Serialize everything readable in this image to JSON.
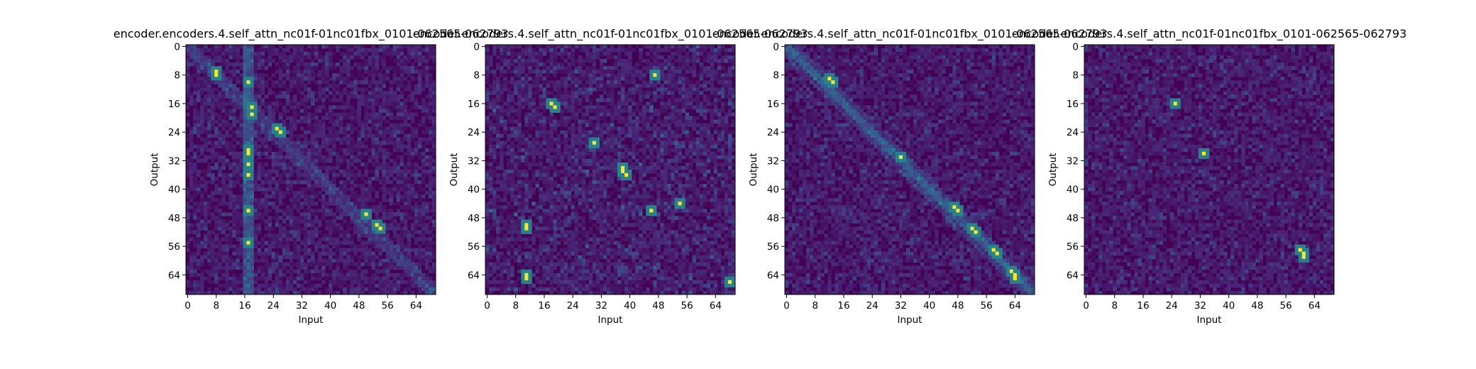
{
  "figure": {
    "background": "#ffffff",
    "colormap": "viridis"
  },
  "chart_data": [
    {
      "type": "heatmap",
      "title": "encoder.encoders.4.self_attn_nc01f-01nc01fbx_0101-062565-062793",
      "xlabel": "Input",
      "ylabel": "Output",
      "x_ticks": [
        "0",
        "8",
        "16",
        "24",
        "32",
        "40",
        "48",
        "56",
        "64"
      ],
      "y_ticks": [
        "0",
        "8",
        "16",
        "24",
        "32",
        "40",
        "48",
        "56",
        "64"
      ],
      "n_inputs": 70,
      "n_outputs": 70,
      "grid": false,
      "peaks": [
        [
          7,
          8
        ],
        [
          8,
          8
        ],
        [
          10,
          17
        ],
        [
          17,
          18
        ],
        [
          19,
          18
        ],
        [
          29,
          17
        ],
        [
          30,
          17
        ],
        [
          33,
          17
        ],
        [
          36,
          17
        ],
        [
          46,
          17
        ],
        [
          55,
          17
        ],
        [
          23,
          25
        ],
        [
          24,
          26
        ],
        [
          47,
          50
        ],
        [
          50,
          53
        ],
        [
          51,
          54
        ]
      ],
      "structure": "diagonal band with strong vertical stripe near input 17"
    },
    {
      "type": "heatmap",
      "title": "encoder.encoders.4.self_attn_nc01f-01nc01fbx_0101-062565-062793",
      "xlabel": "Input",
      "ylabel": "Output",
      "x_ticks": [
        "0",
        "8",
        "16",
        "24",
        "32",
        "40",
        "48",
        "56",
        "64"
      ],
      "y_ticks": [
        "0",
        "8",
        "16",
        "24",
        "32",
        "40",
        "48",
        "56",
        "64"
      ],
      "n_inputs": 70,
      "n_outputs": 70,
      "grid": false,
      "peaks": [
        [
          16,
          18
        ],
        [
          17,
          19
        ],
        [
          27,
          30
        ],
        [
          34,
          38
        ],
        [
          35,
          38
        ],
        [
          36,
          39
        ],
        [
          44,
          54
        ],
        [
          46,
          46
        ],
        [
          50,
          11
        ],
        [
          51,
          11
        ],
        [
          64,
          11
        ],
        [
          65,
          11
        ],
        [
          66,
          68
        ],
        [
          8,
          47
        ]
      ],
      "structure": "scattered sparse attention"
    },
    {
      "type": "heatmap",
      "title": "encoder.encoders.4.self_attn_nc01f-01nc01fbx_0101-062565-062793",
      "xlabel": "Input",
      "ylabel": "Output",
      "x_ticks": [
        "0",
        "8",
        "16",
        "24",
        "32",
        "40",
        "48",
        "56",
        "64"
      ],
      "y_ticks": [
        "0",
        "8",
        "16",
        "24",
        "32",
        "40",
        "48",
        "56",
        "64"
      ],
      "n_inputs": 70,
      "n_outputs": 70,
      "grid": false,
      "peaks": [
        [
          9,
          12
        ],
        [
          10,
          13
        ],
        [
          31,
          32
        ],
        [
          45,
          47
        ],
        [
          46,
          48
        ],
        [
          51,
          52
        ],
        [
          52,
          53
        ],
        [
          57,
          58
        ],
        [
          58,
          59
        ],
        [
          63,
          63
        ],
        [
          64,
          64
        ],
        [
          65,
          64
        ]
      ],
      "structure": "strong diagonal band"
    },
    {
      "type": "heatmap",
      "title": "encoder.encoders.4.self_attn_nc01f-01nc01fbx_0101-062565-062793",
      "xlabel": "Input",
      "ylabel": "Output",
      "x_ticks": [
        "0",
        "8",
        "16",
        "24",
        "32",
        "40",
        "48",
        "56",
        "64"
      ],
      "y_ticks": [
        "0",
        "8",
        "16",
        "24",
        "32",
        "40",
        "48",
        "56",
        "64"
      ],
      "n_inputs": 70,
      "n_outputs": 70,
      "grid": false,
      "peaks": [
        [
          57,
          60
        ],
        [
          58,
          61
        ],
        [
          59,
          61
        ],
        [
          16,
          25
        ],
        [
          30,
          33
        ]
      ],
      "structure": "diffuse low attention with one bright spot"
    }
  ]
}
